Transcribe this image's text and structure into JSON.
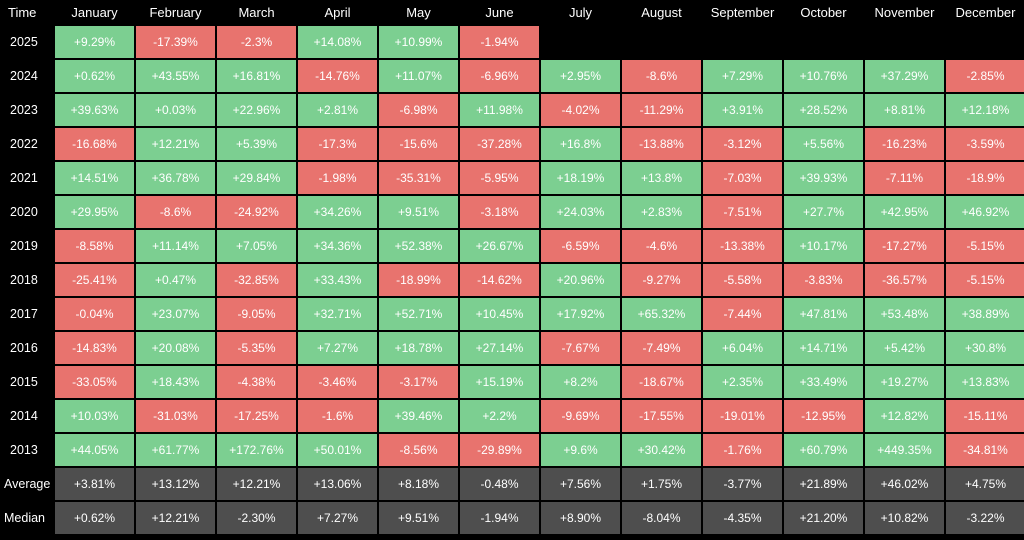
{
  "colors": {
    "positive": "#7ccf91",
    "negative": "#e8736e",
    "summary": "#4e4e4e",
    "background": "#000000",
    "text": "#ffffff"
  },
  "chart_data": {
    "type": "heatmap",
    "corner_label": "Time",
    "columns": [
      "January",
      "February",
      "March",
      "April",
      "May",
      "June",
      "July",
      "August",
      "September",
      "October",
      "November",
      "December"
    ],
    "rows": [
      {
        "label": "2025",
        "values": [
          "+9.29%",
          "-17.39%",
          "-2.3%",
          "+14.08%",
          "+10.99%",
          "-1.94%",
          null,
          null,
          null,
          null,
          null,
          null
        ]
      },
      {
        "label": "2024",
        "values": [
          "+0.62%",
          "+43.55%",
          "+16.81%",
          "-14.76%",
          "+11.07%",
          "-6.96%",
          "+2.95%",
          "-8.6%",
          "+7.29%",
          "+10.76%",
          "+37.29%",
          "-2.85%"
        ]
      },
      {
        "label": "2023",
        "values": [
          "+39.63%",
          "+0.03%",
          "+22.96%",
          "+2.81%",
          "-6.98%",
          "+11.98%",
          "-4.02%",
          "-11.29%",
          "+3.91%",
          "+28.52%",
          "+8.81%",
          "+12.18%"
        ]
      },
      {
        "label": "2022",
        "values": [
          "-16.68%",
          "+12.21%",
          "+5.39%",
          "-17.3%",
          "-15.6%",
          "-37.28%",
          "+16.8%",
          "-13.88%",
          "-3.12%",
          "+5.56%",
          "-16.23%",
          "-3.59%"
        ]
      },
      {
        "label": "2021",
        "values": [
          "+14.51%",
          "+36.78%",
          "+29.84%",
          "-1.98%",
          "-35.31%",
          "-5.95%",
          "+18.19%",
          "+13.8%",
          "-7.03%",
          "+39.93%",
          "-7.11%",
          "-18.9%"
        ]
      },
      {
        "label": "2020",
        "values": [
          "+29.95%",
          "-8.6%",
          "-24.92%",
          "+34.26%",
          "+9.51%",
          "-3.18%",
          "+24.03%",
          "+2.83%",
          "-7.51%",
          "+27.7%",
          "+42.95%",
          "+46.92%"
        ]
      },
      {
        "label": "2019",
        "values": [
          "-8.58%",
          "+11.14%",
          "+7.05%",
          "+34.36%",
          "+52.38%",
          "+26.67%",
          "-6.59%",
          "-4.6%",
          "-13.38%",
          "+10.17%",
          "-17.27%",
          "-5.15%"
        ]
      },
      {
        "label": "2018",
        "values": [
          "-25.41%",
          "+0.47%",
          "-32.85%",
          "+33.43%",
          "-18.99%",
          "-14.62%",
          "+20.96%",
          "-9.27%",
          "-5.58%",
          "-3.83%",
          "-36.57%",
          "-5.15%"
        ]
      },
      {
        "label": "2017",
        "values": [
          "-0.04%",
          "+23.07%",
          "-9.05%",
          "+32.71%",
          "+52.71%",
          "+10.45%",
          "+17.92%",
          "+65.32%",
          "-7.44%",
          "+47.81%",
          "+53.48%",
          "+38.89%"
        ]
      },
      {
        "label": "2016",
        "values": [
          "-14.83%",
          "+20.08%",
          "-5.35%",
          "+7.27%",
          "+18.78%",
          "+27.14%",
          "-7.67%",
          "-7.49%",
          "+6.04%",
          "+14.71%",
          "+5.42%",
          "+30.8%"
        ]
      },
      {
        "label": "2015",
        "values": [
          "-33.05%",
          "+18.43%",
          "-4.38%",
          "-3.46%",
          "-3.17%",
          "+15.19%",
          "+8.2%",
          "-18.67%",
          "+2.35%",
          "+33.49%",
          "+19.27%",
          "+13.83%"
        ]
      },
      {
        "label": "2014",
        "values": [
          "+10.03%",
          "-31.03%",
          "-17.25%",
          "-1.6%",
          "+39.46%",
          "+2.2%",
          "-9.69%",
          "-17.55%",
          "-19.01%",
          "-12.95%",
          "+12.82%",
          "-15.11%"
        ]
      },
      {
        "label": "2013",
        "values": [
          "+44.05%",
          "+61.77%",
          "+172.76%",
          "+50.01%",
          "-8.56%",
          "-29.89%",
          "+9.6%",
          "+30.42%",
          "-1.76%",
          "+60.79%",
          "+449.35%",
          "-34.81%"
        ]
      }
    ],
    "summary_rows": [
      {
        "label": "Average",
        "values": [
          "+3.81%",
          "+13.12%",
          "+12.21%",
          "+13.06%",
          "+8.18%",
          "-0.48%",
          "+7.56%",
          "+1.75%",
          "-3.77%",
          "+21.89%",
          "+46.02%",
          "+4.75%"
        ]
      },
      {
        "label": "Median",
        "values": [
          "+0.62%",
          "+12.21%",
          "-2.30%",
          "+7.27%",
          "+9.51%",
          "-1.94%",
          "+8.90%",
          "-8.04%",
          "-4.35%",
          "+21.20%",
          "+10.82%",
          "-3.22%"
        ]
      }
    ]
  }
}
